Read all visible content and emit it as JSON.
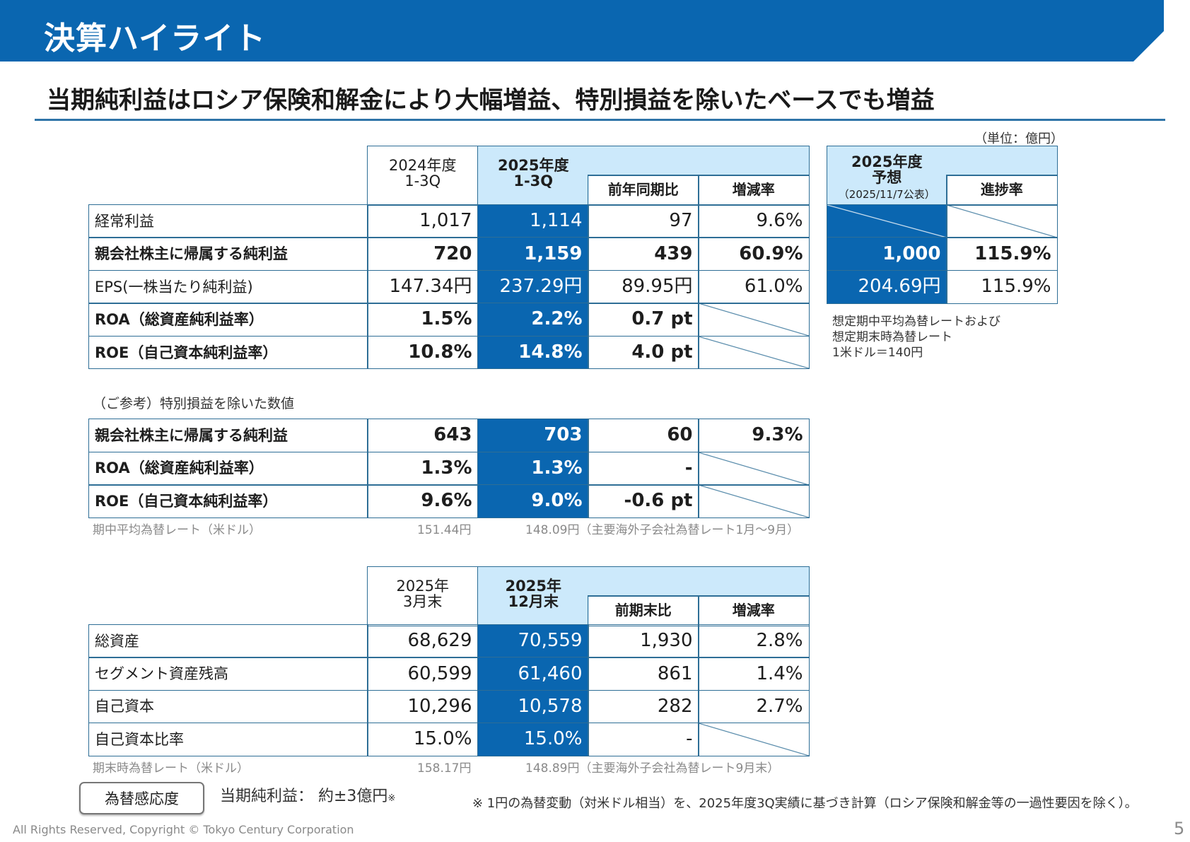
{
  "header": {
    "title": "決算ハイライト",
    "subtitle": "当期純利益はロシア保険和解金により大幅増益、特別損益を除いたベースでも増益",
    "unit": "（単位：億円）"
  },
  "colors": {
    "accent": "#0a66b0",
    "light": "#cce9fb",
    "border": "#2e6e96"
  },
  "results": {
    "headers": {
      "prev": "2024年度\n1-3Q",
      "cur": "2025年度\n1-3Q",
      "diff": "前年同期比",
      "rate": "増減率"
    },
    "rows": [
      {
        "label": "経常利益",
        "prev": "1,017",
        "cur": "1,114",
        "diff": "97",
        "rate": "9.6%",
        "bold": false
      },
      {
        "label": "親会社株主に帰属する純利益",
        "prev": "720",
        "cur": "1,159",
        "diff": "439",
        "rate": "60.9%",
        "bold": true
      },
      {
        "label": "EPS(一株当たり純利益)",
        "prev": "147.34円",
        "cur": "237.29円",
        "diff": "89.95円",
        "rate": "61.0%",
        "bold": false
      },
      {
        "label": "ROA（総資産純利益率）",
        "prev": "1.5%",
        "cur": "2.2%",
        "diff": "0.7 pt",
        "rate": null,
        "bold": true
      },
      {
        "label": "ROE（自己資本純利益率）",
        "prev": "10.8%",
        "cur": "14.8%",
        "diff": "4.0 pt",
        "rate": null,
        "bold": true
      }
    ]
  },
  "forecast": {
    "header": "2025年度\n予想",
    "header_date": "（2025/11/7公表）",
    "progress": "進捗率",
    "rows": [
      {
        "value": null,
        "progress": null,
        "bold": false
      },
      {
        "value": "1,000",
        "progress": "115.9%",
        "bold": true
      },
      {
        "value": "204.69円",
        "progress": "115.9%",
        "bold": false
      }
    ],
    "notes": [
      "想定期中平均為替レートおよび",
      "想定期末時為替レート",
      "1米ドル＝140円"
    ]
  },
  "reference": {
    "caption": "（ご参考）特別損益を除いた数値",
    "rows": [
      {
        "label": "親会社株主に帰属する純利益",
        "prev": "643",
        "cur": "703",
        "diff": "60",
        "rate": "9.3%",
        "bold": true
      },
      {
        "label": "ROA（総資産純利益率）",
        "prev": "1.3%",
        "cur": "1.3%",
        "diff": "-",
        "rate": null,
        "bold": true
      },
      {
        "label": "ROE（自己資本純利益率）",
        "prev": "9.6%",
        "cur": "9.0%",
        "diff": "-0.6 pt",
        "rate": null,
        "bold": true
      }
    ],
    "fx_label": "期中平均為替レート（米ドル）",
    "fx_prev": "151.44円",
    "fx_cur": "148.09円（主要海外子会社為替レート1月～9月）"
  },
  "balance": {
    "headers": {
      "prev": "2025年\n3月末",
      "cur": "2025年\n12月末",
      "diff": "前期末比",
      "rate": "増減率"
    },
    "rows": [
      {
        "label": "総資産",
        "prev": "68,629",
        "cur": "70,559",
        "diff": "1,930",
        "rate": "2.8%",
        "bold": false
      },
      {
        "label": "セグメント資産残高",
        "prev": "60,599",
        "cur": "61,460",
        "diff": "861",
        "rate": "1.4%",
        "bold": false
      },
      {
        "label": "自己資本",
        "prev": "10,296",
        "cur": "10,578",
        "diff": "282",
        "rate": "2.7%",
        "bold": false
      },
      {
        "label": "自己資本比率",
        "prev": "15.0%",
        "cur": "15.0%",
        "diff": "-",
        "rate": null,
        "bold": false
      }
    ],
    "fx_label": "期末時為替レート（米ドル）",
    "fx_prev": "158.17円",
    "fx_cur": "148.89円（主要海外子会社為替レート9月末）"
  },
  "sensitivity": {
    "button": "為替感応度",
    "text": "当期純利益：  約±3億円",
    "mark": "※",
    "footnote": "※  1円の為替変動（対米ドル相当）を、2025年度3Q実績に基づき計算（ロシア保険和解金等の一過性要因を除く）。"
  },
  "footer": {
    "copyright": "All Rights Reserved, Copyright © Tokyo Century Corporation",
    "page": "5"
  }
}
